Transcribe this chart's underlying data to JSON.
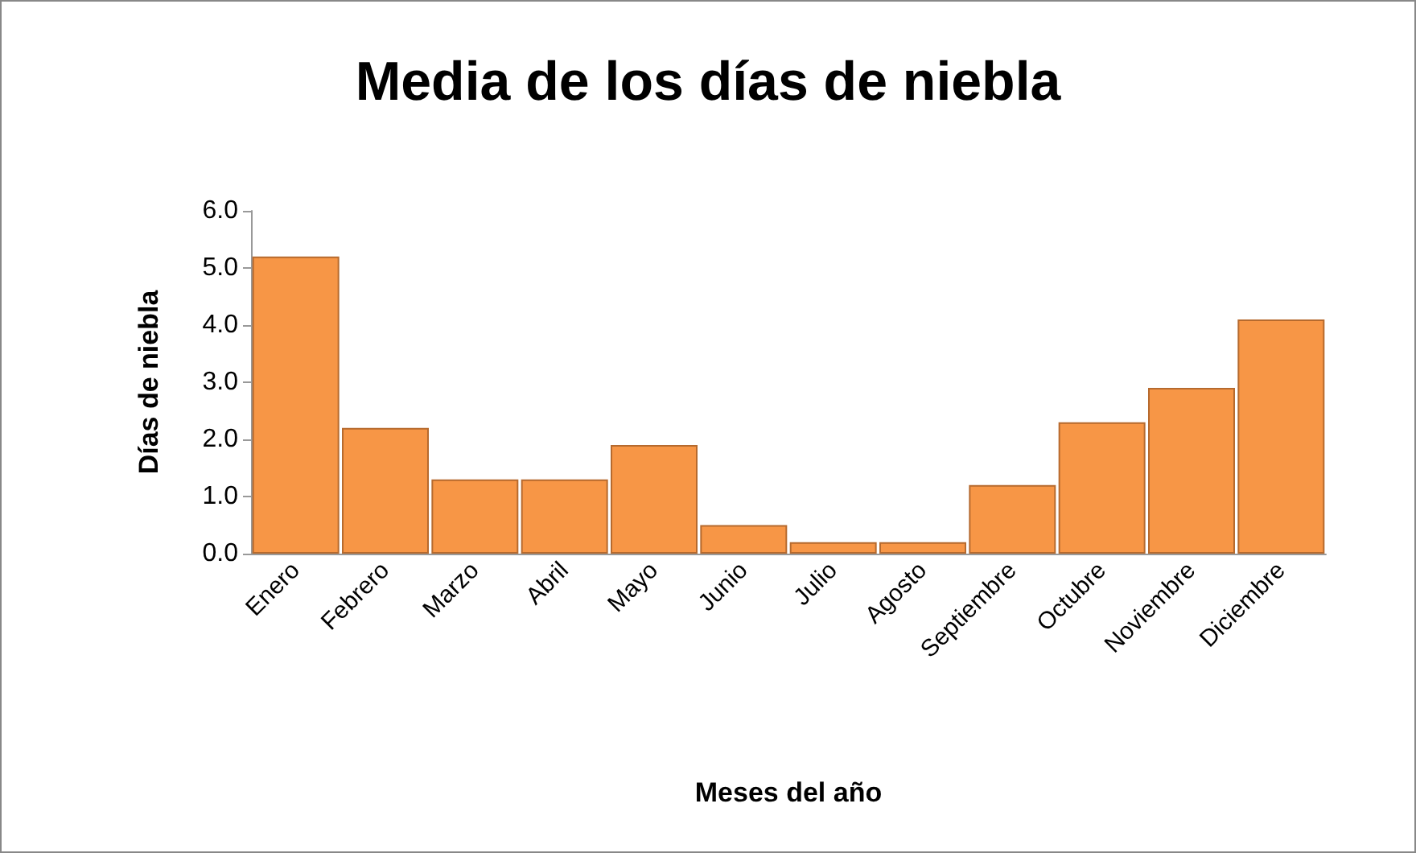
{
  "chart_data": {
    "type": "bar",
    "title": "Media de los días de niebla",
    "xlabel": "Meses del año",
    "ylabel": "Días de niebla",
    "categories": [
      "Enero",
      "Febrero",
      "Marzo",
      "Abril",
      "Mayo",
      "Junio",
      "Julio",
      "Agosto",
      "Septiembre",
      "Octubre",
      "Noviembre",
      "Diciembre"
    ],
    "values": [
      5.2,
      2.2,
      1.3,
      1.3,
      1.9,
      0.5,
      0.2,
      0.2,
      1.2,
      2.3,
      2.9,
      4.1
    ],
    "color": "#f79646",
    "ylim": [
      0,
      6
    ],
    "yticks": [
      {
        "value": 0,
        "label": "0.0"
      },
      {
        "value": 1,
        "label": "1.0"
      },
      {
        "value": 2,
        "label": "2.0"
      },
      {
        "value": 3,
        "label": "3.0"
      },
      {
        "value": 4,
        "label": "4.0"
      },
      {
        "value": 5,
        "label": "5.0"
      },
      {
        "value": 6,
        "label": "6.0"
      }
    ],
    "grid": false
  }
}
